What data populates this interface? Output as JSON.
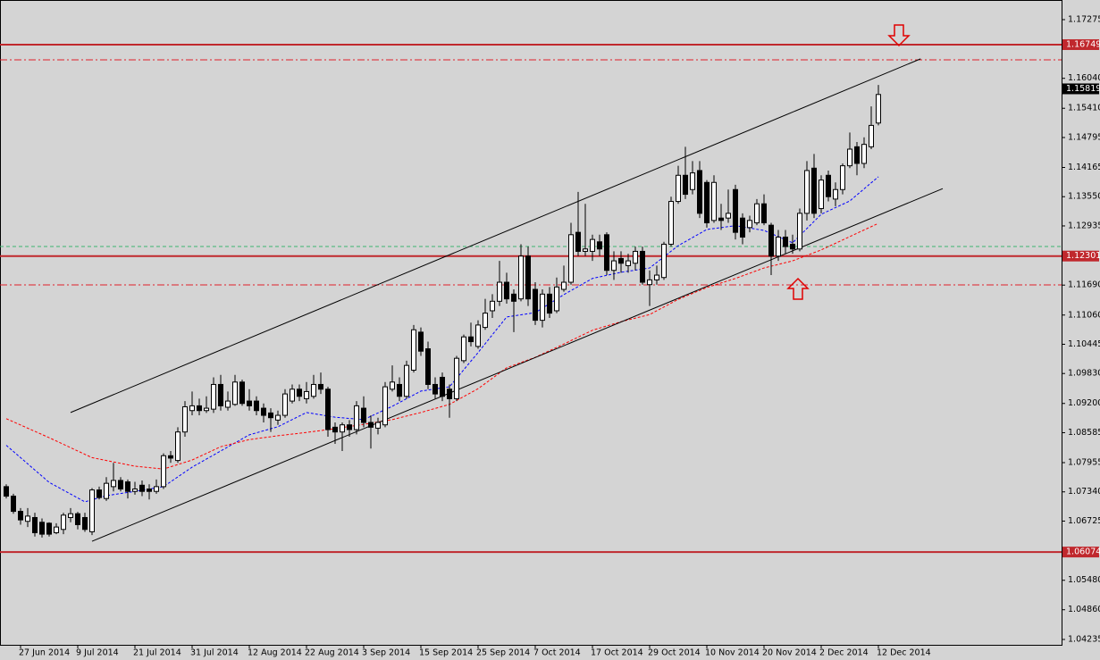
{
  "chart_data": {
    "type": "candlestick",
    "up_color": "#ffffff",
    "down_color": "#000000",
    "categories": [
      null,
      null,
      "27 Jun 2014",
      null,
      null,
      null,
      null,
      null,
      null,
      null,
      "9 Jul 2014",
      null,
      null,
      null,
      null,
      null,
      null,
      null,
      "21 Jul 2014",
      null,
      null,
      null,
      null,
      null,
      null,
      null,
      "31 Jul 2014",
      null,
      null,
      null,
      null,
      null,
      null,
      null,
      "12 Aug 2014",
      null,
      null,
      null,
      null,
      null,
      null,
      null,
      "22 Aug 2014",
      null,
      null,
      null,
      null,
      null,
      null,
      null,
      "3 Sep 2014",
      null,
      null,
      null,
      null,
      null,
      null,
      null,
      "15 Sep 2014",
      null,
      null,
      null,
      null,
      null,
      null,
      null,
      "25 Sep 2014",
      null,
      null,
      null,
      null,
      null,
      null,
      null,
      "7 Oct 2014",
      null,
      null,
      null,
      null,
      null,
      null,
      null,
      "17 Oct 2014",
      null,
      null,
      null,
      null,
      null,
      null,
      null,
      "29 Oct 2014",
      null,
      null,
      null,
      null,
      null,
      null,
      null,
      "10 Nov 2014",
      null,
      null,
      null,
      null,
      null,
      null,
      null,
      "20 Nov 2014",
      null,
      null,
      null,
      null,
      null,
      null,
      null,
      "2 Dec 2014",
      null,
      null,
      null,
      null,
      null,
      null,
      null,
      "12 Dec 2014"
    ],
    "ohlc": [
      [
        1.0745,
        1.075,
        1.072,
        1.0725
      ],
      [
        1.0725,
        1.073,
        1.0688,
        1.0693
      ],
      [
        1.0693,
        1.07,
        1.0665,
        1.0675
      ],
      [
        1.0672,
        1.07,
        1.066,
        1.0683
      ],
      [
        1.068,
        1.069,
        1.064,
        1.0648
      ],
      [
        1.067,
        1.0678,
        1.0638,
        1.0645
      ],
      [
        1.0668,
        1.067,
        1.064,
        1.0645
      ],
      [
        1.0648,
        1.0668,
        1.0645,
        1.066
      ],
      [
        1.0655,
        1.069,
        1.0645,
        1.0685
      ],
      [
        1.068,
        1.07,
        1.067,
        1.0688
      ],
      [
        1.0688,
        1.0692,
        1.0655,
        1.0665
      ],
      [
        1.068,
        1.069,
        1.065,
        1.0655
      ],
      [
        1.065,
        1.0742,
        1.0643,
        1.0738
      ],
      [
        1.0738,
        1.0745,
        1.0718,
        1.0722
      ],
      [
        1.072,
        1.0765,
        1.0715,
        1.0752
      ],
      [
        1.0745,
        1.0795,
        1.0735,
        1.0758
      ],
      [
        1.0758,
        1.0765,
        1.0735,
        1.074
      ],
      [
        1.0755,
        1.076,
        1.072,
        1.0735
      ],
      [
        1.0735,
        1.0755,
        1.0728,
        1.074
      ],
      [
        1.0748,
        1.0758,
        1.0725,
        1.0735
      ],
      [
        1.074,
        1.075,
        1.0718,
        1.0735
      ],
      [
        1.0735,
        1.076,
        1.073,
        1.0745
      ],
      [
        1.0745,
        1.0815,
        1.074,
        1.081
      ],
      [
        1.081,
        1.082,
        1.0795,
        1.0805
      ],
      [
        1.08,
        1.087,
        1.0795,
        1.086
      ],
      [
        1.086,
        1.0925,
        1.085,
        1.0913
      ],
      [
        1.0905,
        1.0945,
        1.0895,
        1.0915
      ],
      [
        1.0915,
        1.093,
        1.0895,
        1.0905
      ],
      [
        1.0905,
        1.0935,
        1.09,
        1.091
      ],
      [
        1.0908,
        1.0975,
        1.09,
        1.096
      ],
      [
        1.096,
        1.098,
        1.0905,
        1.0915
      ],
      [
        1.0912,
        1.0945,
        1.0905,
        1.0925
      ],
      [
        1.0918,
        1.098,
        1.0915,
        1.0965
      ],
      [
        1.0965,
        1.097,
        1.0915,
        1.092
      ],
      [
        1.0925,
        1.095,
        1.0905,
        1.0915
      ],
      [
        1.0925,
        1.0935,
        1.0895,
        1.0905
      ],
      [
        1.091,
        1.092,
        1.088,
        1.0895
      ],
      [
        1.09,
        1.091,
        1.086,
        1.089
      ],
      [
        1.0885,
        1.0905,
        1.0875,
        1.0895
      ],
      [
        1.0895,
        1.095,
        1.089,
        1.094
      ],
      [
        1.0925,
        1.096,
        1.092,
        1.095
      ],
      [
        1.095,
        1.096,
        1.0925,
        1.0935
      ],
      [
        1.093,
        1.0965,
        1.092,
        1.0945
      ],
      [
        1.0935,
        1.098,
        1.093,
        1.096
      ],
      [
        1.096,
        1.0985,
        1.094,
        1.095
      ],
      [
        1.095,
        1.0955,
        1.085,
        1.0865
      ],
      [
        1.087,
        1.088,
        1.0835,
        1.086
      ],
      [
        1.086,
        1.088,
        1.082,
        1.0875
      ],
      [
        1.0875,
        1.0885,
        1.085,
        1.0865
      ],
      [
        1.0865,
        1.0925,
        1.0855,
        1.0915
      ],
      [
        1.091,
        1.0935,
        1.087,
        1.088
      ],
      [
        1.088,
        1.0895,
        1.0825,
        1.087
      ],
      [
        1.0868,
        1.089,
        1.0855,
        1.088
      ],
      [
        1.0875,
        1.0965,
        1.087,
        1.0955
      ],
      [
        1.095,
        1.1,
        1.0945,
        1.0965
      ],
      [
        1.096,
        1.0975,
        1.0925,
        1.0935
      ],
      [
        1.0935,
        1.101,
        1.093,
        1.1
      ],
      [
        1.099,
        1.1085,
        1.0985,
        1.1075
      ],
      [
        1.107,
        1.108,
        1.102,
        1.103
      ],
      [
        1.1035,
        1.105,
        1.095,
        1.096
      ],
      [
        1.096,
        1.0975,
        1.093,
        1.094
      ],
      [
        1.0975,
        1.0985,
        1.0925,
        1.0935
      ],
      [
        1.095,
        1.096,
        1.089,
        1.093
      ],
      [
        1.093,
        1.102,
        1.0925,
        1.1015
      ],
      [
        1.101,
        1.1065,
        1.1005,
        1.106
      ],
      [
        1.106,
        1.109,
        1.104,
        1.105
      ],
      [
        1.104,
        1.1095,
        1.1035,
        1.1085
      ],
      [
        1.108,
        1.114,
        1.1075,
        1.111
      ],
      [
        1.1115,
        1.115,
        1.11,
        1.1135
      ],
      [
        1.1135,
        1.122,
        1.1125,
        1.1175
      ],
      [
        1.1175,
        1.1195,
        1.113,
        1.114
      ],
      [
        1.115,
        1.116,
        1.107,
        1.1135
      ],
      [
        1.114,
        1.1255,
        1.1135,
        1.123
      ],
      [
        1.123,
        1.125,
        1.1125,
        1.114
      ],
      [
        1.116,
        1.1175,
        1.1085,
        1.1095
      ],
      [
        1.1095,
        1.116,
        1.108,
        1.115
      ],
      [
        1.115,
        1.1165,
        1.11,
        1.111
      ],
      [
        1.1115,
        1.1185,
        1.111,
        1.1165
      ],
      [
        1.116,
        1.121,
        1.1155,
        1.1175
      ],
      [
        1.1175,
        1.13,
        1.117,
        1.1275
      ],
      [
        1.128,
        1.1365,
        1.123,
        1.124
      ],
      [
        1.124,
        1.134,
        1.123,
        1.1245
      ],
      [
        1.124,
        1.1275,
        1.122,
        1.1265
      ],
      [
        1.126,
        1.1275,
        1.123,
        1.1245
      ],
      [
        1.1275,
        1.128,
        1.119,
        1.12
      ],
      [
        1.12,
        1.124,
        1.118,
        1.122
      ],
      [
        1.1225,
        1.124,
        1.1195,
        1.1215
      ],
      [
        1.121,
        1.1235,
        1.1195,
        1.122
      ],
      [
        1.1215,
        1.125,
        1.12,
        1.124
      ],
      [
        1.124,
        1.125,
        1.117,
        1.1175
      ],
      [
        1.117,
        1.12,
        1.1125,
        1.118
      ],
      [
        1.118,
        1.121,
        1.117,
        1.119
      ],
      [
        1.1185,
        1.126,
        1.118,
        1.1255
      ],
      [
        1.1255,
        1.1355,
        1.125,
        1.1345
      ],
      [
        1.1345,
        1.142,
        1.134,
        1.14
      ],
      [
        1.14,
        1.146,
        1.135,
        1.136
      ],
      [
        1.137,
        1.143,
        1.136,
        1.1405
      ],
      [
        1.141,
        1.143,
        1.131,
        1.132
      ],
      [
        1.1385,
        1.139,
        1.129,
        1.13
      ],
      [
        1.1305,
        1.14,
        1.13,
        1.1385
      ],
      [
        1.131,
        1.134,
        1.1285,
        1.1305
      ],
      [
        1.131,
        1.137,
        1.13,
        1.132
      ],
      [
        1.137,
        1.138,
        1.1265,
        1.128
      ],
      [
        1.131,
        1.132,
        1.1255,
        1.127
      ],
      [
        1.129,
        1.1315,
        1.128,
        1.1305
      ],
      [
        1.13,
        1.135,
        1.1295,
        1.134
      ],
      [
        1.134,
        1.136,
        1.1295,
        1.13
      ],
      [
        1.1295,
        1.13,
        1.119,
        1.123
      ],
      [
        1.123,
        1.1285,
        1.122,
        1.127
      ],
      [
        1.127,
        1.1285,
        1.1235,
        1.125
      ],
      [
        1.1255,
        1.1275,
        1.1235,
        1.1245
      ],
      [
        1.1245,
        1.133,
        1.124,
        1.132
      ],
      [
        1.132,
        1.143,
        1.1305,
        1.141
      ],
      [
        1.1415,
        1.1445,
        1.131,
        1.132
      ],
      [
        1.133,
        1.14,
        1.132,
        1.139
      ],
      [
        1.14,
        1.141,
        1.1345,
        1.1355
      ],
      [
        1.135,
        1.1385,
        1.1335,
        1.137
      ],
      [
        1.137,
        1.1425,
        1.136,
        1.142
      ],
      [
        1.142,
        1.149,
        1.1415,
        1.1455
      ],
      [
        1.146,
        1.147,
        1.14,
        1.1425
      ],
      [
        1.1425,
        1.148,
        1.1415,
        1.1465
      ],
      [
        1.146,
        1.1545,
        1.1455,
        1.1505
      ],
      [
        1.151,
        1.159,
        1.1505,
        1.157
      ]
    ],
    "moving_averages": [
      {
        "color": "#0000ff",
        "x": [
          0,
          6,
          11,
          14,
          18,
          22,
          26,
          30,
          34,
          38,
          42,
          46,
          50,
          54,
          58,
          62,
          66,
          70,
          74,
          78,
          82,
          86,
          90,
          94,
          98,
          102,
          106,
          110,
          114,
          118,
          122
        ],
        "values": [
          1.0832,
          1.0754,
          1.0713,
          1.0726,
          1.0735,
          1.0745,
          1.0786,
          1.082,
          1.0854,
          1.0871,
          1.0901,
          1.0891,
          1.0886,
          1.0914,
          1.0946,
          1.0955,
          1.1027,
          1.1102,
          1.1111,
          1.1149,
          1.1183,
          1.1196,
          1.1205,
          1.1252,
          1.1286,
          1.1294,
          1.1284,
          1.1258,
          1.1318,
          1.1346,
          1.1397
        ]
      },
      {
        "color": "#ff0000",
        "x": [
          0,
          6,
          12,
          18,
          22,
          26,
          30,
          34,
          38,
          42,
          46,
          50,
          54,
          58,
          62,
          66,
          70,
          74,
          78,
          82,
          86,
          90,
          94,
          98,
          102,
          106,
          110,
          114,
          118,
          122
        ],
        "values": [
          1.0888,
          1.0848,
          1.0806,
          1.0788,
          1.0782,
          1.0801,
          1.0829,
          1.0844,
          1.0852,
          1.0859,
          1.0867,
          1.0876,
          1.0886,
          1.0901,
          1.0918,
          1.0951,
          1.0995,
          1.1017,
          1.1045,
          1.1074,
          1.1092,
          1.1107,
          1.1139,
          1.1164,
          1.1183,
          1.1205,
          1.122,
          1.1243,
          1.1271,
          1.1299
        ]
      }
    ],
    "trendlines": [
      {
        "color": "#000000",
        "x": [
          9,
          127.9
        ],
        "values": [
          1.0901,
          1.1645
        ]
      },
      {
        "color": "#000000",
        "x": [
          12,
          131
        ],
        "values": [
          1.063,
          1.1372
        ]
      }
    ],
    "levels": [
      {
        "value": 1.16749,
        "color": "#c0282d",
        "style": "solid"
      },
      {
        "value": 1.12301,
        "color": "#c0282d",
        "style": "solid"
      },
      {
        "value": 1.06074,
        "color": "#c0282d",
        "style": "solid"
      }
    ],
    "dashed_levels": [
      {
        "value": 1.16429,
        "color": "#e0202a",
        "style": "dashdot"
      },
      {
        "value": 1.11694,
        "color": "#e0202a",
        "style": "dashdot"
      },
      {
        "value": 1.12502,
        "color": "#3cb371",
        "style": "dashed"
      }
    ],
    "price_label": {
      "value": 1.15819,
      "color": "#000000"
    },
    "ylim": [
      1.04122,
      1.17688
    ],
    "yticks": [
      1.17275,
      {
        "value": 1.1604,
        "label": "1.16040"
      },
      {
        "value": 1.1541,
        "label": "1.15410"
      },
      1.14795,
      1.14165,
      {
        "value": 1.1355,
        "label": "1.13550"
      },
      1.12935,
      {
        "value": 1.1169,
        "label": "1.11690"
      },
      {
        "value": 1.1106,
        "label": "1.11060"
      },
      1.10445,
      {
        "value": 1.0983,
        "label": "1.09830"
      },
      {
        "value": 1.092,
        "label": "1.09200"
      },
      1.08585,
      1.07955,
      {
        "value": 1.0734,
        "label": "1.07340"
      },
      1.06725,
      {
        "value": 1.0548,
        "label": "1.05480"
      },
      {
        "value": 1.0486,
        "label": "1.04860"
      },
      1.04235
    ]
  }
}
